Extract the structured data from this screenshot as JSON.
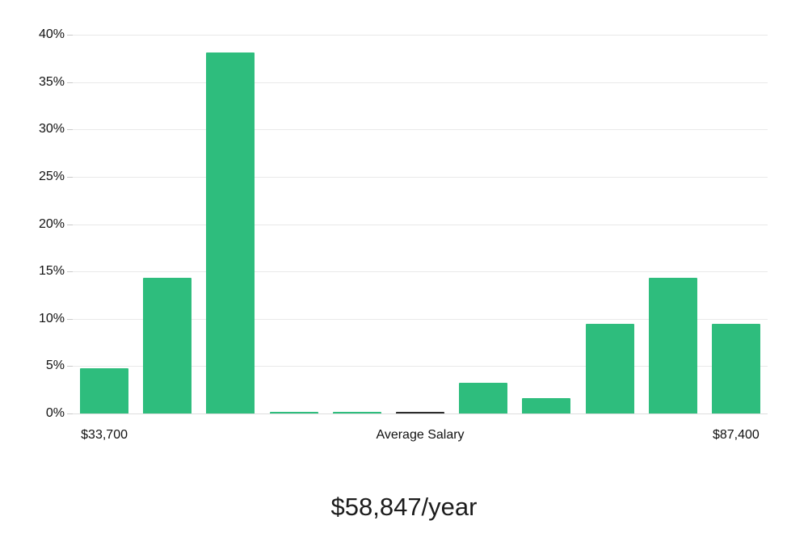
{
  "chart_data": {
    "type": "bar",
    "title": "$58,847/year",
    "ylim": [
      0,
      40
    ],
    "grid": true,
    "grid_color": "#e9e9e9",
    "bar_color": "#2ebd7d",
    "highlight_index": 5,
    "highlight_color": "#2b2b2b",
    "tick_label_color": "#111111",
    "values": [
      4.8,
      14.3,
      38.1,
      0.1,
      0.1,
      0.1,
      3.2,
      1.6,
      9.5,
      14.3,
      9.5
    ],
    "yticks": [
      {
        "value": 0,
        "label": "0%"
      },
      {
        "value": 5,
        "label": "5%"
      },
      {
        "value": 10,
        "label": "10%"
      },
      {
        "value": 15,
        "label": "15%"
      },
      {
        "value": 20,
        "label": "20%"
      },
      {
        "value": 25,
        "label": "25%"
      },
      {
        "value": 30,
        "label": "30%"
      },
      {
        "value": 35,
        "label": "35%"
      },
      {
        "value": 40,
        "label": "40%"
      }
    ],
    "xticks": [
      {
        "position": 0,
        "label": "$33,700"
      },
      {
        "position": 5,
        "label": "Average Salary"
      },
      {
        "position": 10,
        "label": "$87,400"
      }
    ]
  }
}
